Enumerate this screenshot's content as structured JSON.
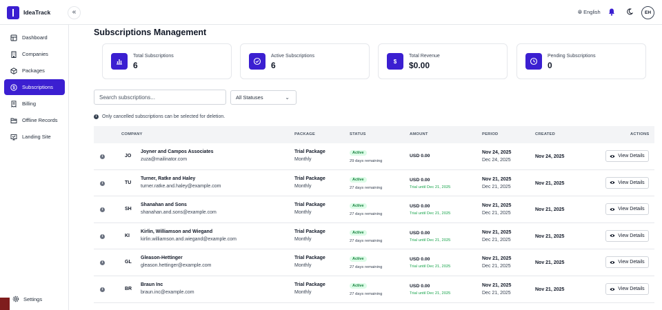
{
  "app": {
    "name": "IdeaTrack"
  },
  "header": {
    "language": "English",
    "avatar_initials": "EH"
  },
  "sidebar": {
    "items": [
      {
        "label": "Dashboard",
        "icon": "dashboard-icon",
        "active": false
      },
      {
        "label": "Companies",
        "icon": "building-icon",
        "active": false
      },
      {
        "label": "Packages",
        "icon": "package-icon",
        "active": false
      },
      {
        "label": "Subscriptions",
        "icon": "dollar-circle-icon",
        "active": true
      },
      {
        "label": "Billing",
        "icon": "receipt-icon",
        "active": false
      },
      {
        "label": "Offline Records",
        "icon": "folder-icon",
        "active": false
      },
      {
        "label": "Landing Site",
        "icon": "monitor-icon",
        "active": false
      }
    ],
    "settings_label": "Settings"
  },
  "page": {
    "title": "Subscriptions Management"
  },
  "stats": [
    {
      "label": "Total Subscriptions",
      "value": "6",
      "icon": "bar-chart-icon"
    },
    {
      "label": "Active Subscriptions",
      "value": "6",
      "icon": "check-circle-icon"
    },
    {
      "label": "Total Revenue",
      "value": "$0.00",
      "icon": "dollar-icon",
      "icon_text": "$"
    },
    {
      "label": "Pending Subscriptions",
      "value": "0",
      "icon": "clock-icon"
    }
  ],
  "filters": {
    "search_placeholder": "Search subscriptions...",
    "status_selected": "All Statuses"
  },
  "note": "Only cancelled subscriptions can be selected for deletion.",
  "table": {
    "headers": {
      "company": "COMPANY",
      "package": "PACKAGE",
      "status": "STATUS",
      "amount": "AMOUNT",
      "period": "PERIOD",
      "created": "CREATED",
      "actions": "ACTIONS"
    },
    "action_label": "View Details",
    "rows": [
      {
        "initials": "JO",
        "name": "Joyner and Campos Associates",
        "email": "zuza@mailinator.com",
        "package": "Trial Package",
        "cycle": "Monthly",
        "status": "Active",
        "remaining": "29 days remaining",
        "amount": "USD 0.00",
        "trial": "",
        "period_start": "Nov 24, 2025",
        "period_end": "Dec 24, 2025",
        "created": "Nov 24, 2025"
      },
      {
        "initials": "TU",
        "name": "Turner, Ratke and Haley",
        "email": "turner.ratke.and.haley@example.com",
        "package": "Trial Package",
        "cycle": "Monthly",
        "status": "Active",
        "remaining": "27 days remaining",
        "amount": "USD 0.00",
        "trial": "Trial until Dec 21, 2025",
        "period_start": "Nov 21, 2025",
        "period_end": "Dec 21, 2025",
        "created": "Nov 21, 2025"
      },
      {
        "initials": "SH",
        "name": "Shanahan and Sons",
        "email": "shanahan.and.sons@example.com",
        "package": "Trial Package",
        "cycle": "Monthly",
        "status": "Active",
        "remaining": "27 days remaining",
        "amount": "USD 0.00",
        "trial": "Trial until Dec 21, 2025",
        "period_start": "Nov 21, 2025",
        "period_end": "Dec 21, 2025",
        "created": "Nov 21, 2025"
      },
      {
        "initials": "KI",
        "name": "Kirlin, Williamson and Wiegand",
        "email": "kirlin.williamson.and.wiegand@example.com",
        "package": "Trial Package",
        "cycle": "Monthly",
        "status": "Active",
        "remaining": "27 days remaining",
        "amount": "USD 0.00",
        "trial": "Trial until Dec 21, 2025",
        "period_start": "Nov 21, 2025",
        "period_end": "Dec 21, 2025",
        "created": "Nov 21, 2025"
      },
      {
        "initials": "GL",
        "name": "Gleason-Hettinger",
        "email": "gleason.hettinger@example.com",
        "package": "Trial Package",
        "cycle": "Monthly",
        "status": "Active",
        "remaining": "27 days remaining",
        "amount": "USD 0.00",
        "trial": "Trial until Dec 21, 2025",
        "period_start": "Nov 21, 2025",
        "period_end": "Dec 21, 2025",
        "created": "Nov 21, 2025"
      },
      {
        "initials": "BR",
        "name": "Braun Inc",
        "email": "braun.inc@example.com",
        "package": "Trial Package",
        "cycle": "Monthly",
        "status": "Active",
        "remaining": "27 days remaining",
        "amount": "USD 0.00",
        "trial": "Trial until Dec 21, 2025",
        "period_start": "Nov 21, 2025",
        "period_end": "Dec 21, 2025",
        "created": "Nov 21, 2025"
      }
    ]
  },
  "colors": {
    "accent": "#3b1fd1",
    "success": "#16a34a",
    "success_bg": "#dcfce7"
  }
}
